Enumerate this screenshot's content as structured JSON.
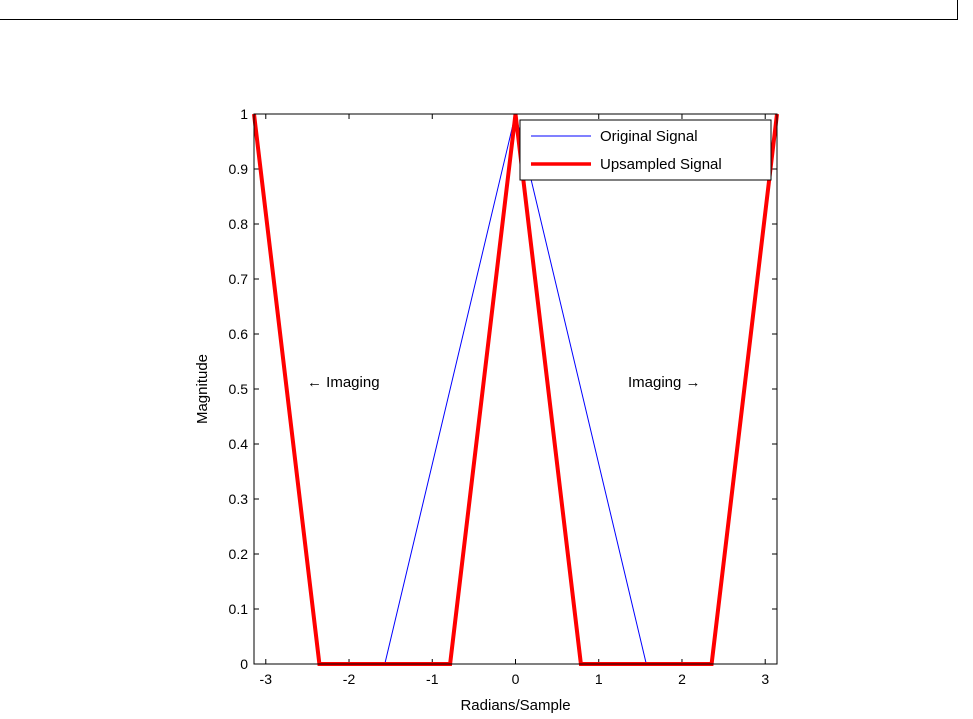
{
  "chart_data": {
    "type": "line",
    "xlabel": "Radians/Sample",
    "ylabel": "Magnitude",
    "xlim": [
      -3.1416,
      3.1416
    ],
    "ylim": [
      0,
      1
    ],
    "xticks": [
      -3,
      -2,
      -1,
      0,
      1,
      2,
      3
    ],
    "yticks": [
      0,
      0.1,
      0.2,
      0.3,
      0.4,
      0.5,
      0.6,
      0.7,
      0.8,
      0.9,
      1
    ],
    "grid": false,
    "legend_position": "top-right",
    "series": [
      {
        "name": "Original Signal",
        "color": "#0000ff",
        "line_width": "thin",
        "x": [
          -3.1416,
          -1.5708,
          0,
          1.5708,
          3.1416
        ],
        "y": [
          0,
          0,
          1,
          0,
          0
        ]
      },
      {
        "name": "Upsampled Signal",
        "color": "#ff0000",
        "line_width": "thick",
        "x": [
          -3.1416,
          -2.3562,
          -0.7854,
          0,
          0.7854,
          2.3562,
          3.1416
        ],
        "y": [
          1,
          0,
          0,
          1,
          0,
          0,
          1
        ]
      }
    ],
    "annotations": [
      {
        "text": "← Imaging",
        "x": -2.5,
        "y": 0.5
      },
      {
        "text": "Imaging →",
        "x": 1.45,
        "y": 0.5
      }
    ]
  }
}
